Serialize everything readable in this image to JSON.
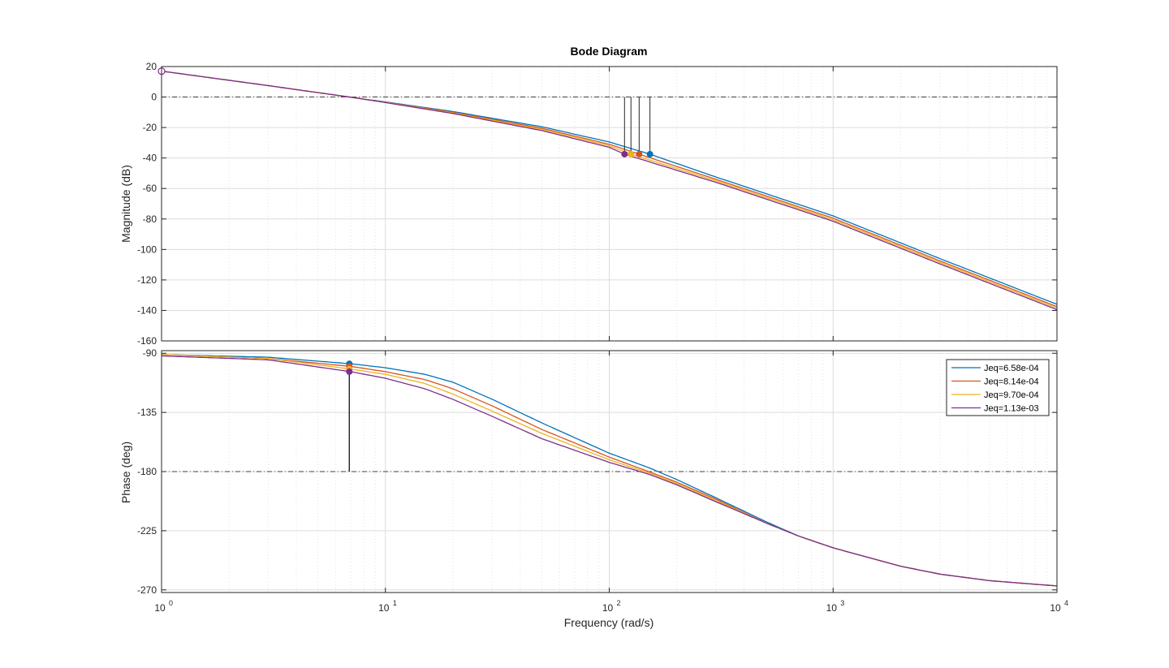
{
  "chart_data": {
    "type": "line",
    "title": "Bode Diagram",
    "xlabel": "Frequency  (rad/s)",
    "x_scale": "log",
    "xlim": [
      1,
      10000
    ],
    "x_ticks": [
      {
        "value": 1,
        "base": "10",
        "exp": "0"
      },
      {
        "value": 10,
        "base": "10",
        "exp": "1"
      },
      {
        "value": 100,
        "base": "10",
        "exp": "2"
      },
      {
        "value": 1000,
        "base": "10",
        "exp": "3"
      },
      {
        "value": 10000,
        "base": "10",
        "exp": "4"
      }
    ],
    "grid": true,
    "legend_position": "top-right",
    "colors": [
      "#0072BD",
      "#D95319",
      "#EDB120",
      "#7E2F8E"
    ],
    "magnitude": {
      "ylabel": "Magnitude (dB)",
      "ylim": [
        -160,
        20
      ],
      "yticks": [
        20,
        0,
        -20,
        -40,
        -60,
        -80,
        -100,
        -120,
        -140,
        -160
      ],
      "reference_line": 0,
      "gain_margin_markers": [
        {
          "series": 0,
          "frequency": 152,
          "value": -37.5
        },
        {
          "series": 1,
          "frequency": 136,
          "value": -37.5
        },
        {
          "series": 2,
          "frequency": 125,
          "value": -37.5
        },
        {
          "series": 3,
          "frequency": 117,
          "value": -37.5
        }
      ],
      "start_marker": {
        "frequency": 1,
        "value": 17
      }
    },
    "phase": {
      "ylabel": "Phase (deg)",
      "ylim": [
        -272,
        -88
      ],
      "yticks": [
        -90,
        -135,
        -180,
        -225,
        -270
      ],
      "reference_line": -180,
      "phase_margin_markers": [
        {
          "series": 0,
          "frequency": 6.9,
          "value": -98
        },
        {
          "series": 1,
          "frequency": 6.9,
          "value": -100
        },
        {
          "series": 2,
          "frequency": 6.9,
          "value": -102
        },
        {
          "series": 3,
          "frequency": 6.9,
          "value": -104
        }
      ]
    },
    "series": [
      {
        "name": "Jeq=6.58e-04",
        "magnitude": [
          [
            1,
            17
          ],
          [
            3,
            7.5
          ],
          [
            6.9,
            0
          ],
          [
            10,
            -3.2
          ],
          [
            20,
            -9.5
          ],
          [
            50,
            -19.5
          ],
          [
            100,
            -29.5
          ],
          [
            152,
            -37.5
          ],
          [
            300,
            -52.5
          ],
          [
            1000,
            -78
          ],
          [
            3000,
            -106
          ],
          [
            10000,
            -136
          ]
        ],
        "phase": [
          [
            1,
            -91
          ],
          [
            3,
            -93
          ],
          [
            7,
            -98
          ],
          [
            10,
            -101
          ],
          [
            15,
            -106
          ],
          [
            20,
            -112
          ],
          [
            30,
            -125
          ],
          [
            50,
            -143
          ],
          [
            100,
            -166
          ],
          [
            150,
            -177
          ],
          [
            200,
            -186
          ],
          [
            300,
            -200
          ],
          [
            500,
            -218
          ],
          [
            700,
            -229
          ],
          [
            1000,
            -238
          ],
          [
            2000,
            -252
          ],
          [
            3000,
            -258
          ],
          [
            5000,
            -263
          ],
          [
            10000,
            -267
          ]
        ]
      },
      {
        "name": "Jeq=8.14e-04",
        "magnitude": [
          [
            1,
            17
          ],
          [
            3,
            7.5
          ],
          [
            6.9,
            0
          ],
          [
            10,
            -3.4
          ],
          [
            20,
            -10
          ],
          [
            50,
            -20.5
          ],
          [
            100,
            -31
          ],
          [
            136,
            -37.5
          ],
          [
            300,
            -54
          ],
          [
            1000,
            -79.5
          ],
          [
            3000,
            -107.5
          ],
          [
            10000,
            -137.5
          ]
        ],
        "phase": [
          [
            1,
            -91
          ],
          [
            3,
            -94
          ],
          [
            7,
            -100
          ],
          [
            10,
            -104
          ],
          [
            15,
            -110
          ],
          [
            20,
            -117
          ],
          [
            30,
            -130
          ],
          [
            50,
            -148
          ],
          [
            100,
            -169
          ],
          [
            150,
            -180
          ],
          [
            200,
            -188
          ],
          [
            300,
            -201
          ],
          [
            500,
            -219
          ],
          [
            700,
            -229
          ],
          [
            1000,
            -238
          ],
          [
            2000,
            -252
          ],
          [
            3000,
            -258
          ],
          [
            5000,
            -263
          ],
          [
            10000,
            -267
          ]
        ]
      },
      {
        "name": "Jeq=9.70e-04",
        "magnitude": [
          [
            1,
            17
          ],
          [
            3,
            7.5
          ],
          [
            6.9,
            0
          ],
          [
            10,
            -3.5
          ],
          [
            20,
            -10.4
          ],
          [
            50,
            -21.2
          ],
          [
            100,
            -32
          ],
          [
            125,
            -37.5
          ],
          [
            300,
            -55
          ],
          [
            1000,
            -80.5
          ],
          [
            3000,
            -108.5
          ],
          [
            10000,
            -138.5
          ]
        ],
        "phase": [
          [
            1,
            -91
          ],
          [
            3,
            -94
          ],
          [
            7,
            -102
          ],
          [
            10,
            -106
          ],
          [
            15,
            -113
          ],
          [
            20,
            -121
          ],
          [
            30,
            -134
          ],
          [
            50,
            -151
          ],
          [
            100,
            -171
          ],
          [
            150,
            -181
          ],
          [
            200,
            -189
          ],
          [
            300,
            -202
          ],
          [
            500,
            -219
          ],
          [
            700,
            -229
          ],
          [
            1000,
            -238
          ],
          [
            2000,
            -252
          ],
          [
            3000,
            -258
          ],
          [
            5000,
            -263
          ],
          [
            10000,
            -267
          ]
        ]
      },
      {
        "name": "Jeq=1.13e-03",
        "magnitude": [
          [
            1,
            17
          ],
          [
            3,
            7.5
          ],
          [
            6.9,
            0
          ],
          [
            10,
            -3.6
          ],
          [
            20,
            -10.8
          ],
          [
            50,
            -22
          ],
          [
            100,
            -33
          ],
          [
            117,
            -37.5
          ],
          [
            300,
            -56
          ],
          [
            1000,
            -81.5
          ],
          [
            3000,
            -109.5
          ],
          [
            10000,
            -139.5
          ]
        ],
        "phase": [
          [
            1,
            -92
          ],
          [
            3,
            -95
          ],
          [
            7,
            -104
          ],
          [
            10,
            -109
          ],
          [
            15,
            -117
          ],
          [
            20,
            -125
          ],
          [
            30,
            -138
          ],
          [
            50,
            -155
          ],
          [
            100,
            -173
          ],
          [
            150,
            -182
          ],
          [
            200,
            -190
          ],
          [
            300,
            -203
          ],
          [
            500,
            -219
          ],
          [
            700,
            -229
          ],
          [
            1000,
            -238
          ],
          [
            2000,
            -252
          ],
          [
            3000,
            -258
          ],
          [
            5000,
            -263
          ],
          [
            10000,
            -267
          ]
        ]
      }
    ]
  }
}
